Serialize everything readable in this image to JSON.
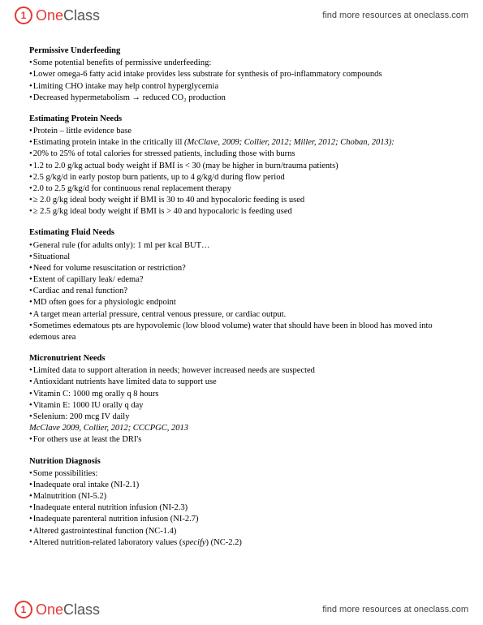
{
  "brand": {
    "one": "One",
    "class": "Class",
    "tagline": "find more resources at oneclass.com"
  },
  "sections": [
    {
      "title": "Permissive Underfeeding",
      "lines": [
        {
          "b": true,
          "t": "Some potential benefits of permissive underfeeding:"
        },
        {
          "b": true,
          "t": "Lower omega-6 fatty acid intake provides less substrate for synthesis of pro-inflammatory compounds"
        },
        {
          "b": true,
          "t": "Limiting CHO intake may help control hyperglycemia"
        },
        {
          "b": true,
          "t": "Decreased hypermetabolism → reduced CO₂ production"
        }
      ]
    },
    {
      "title": "Estimating Protein Needs",
      "lines": [
        {
          "b": true,
          "t": "Protein – little evidence base"
        },
        {
          "b": true,
          "t": "Estimating protein intake in the critically ill ",
          "i": "(McClave, 2009; Collier, 2012; Miller, 2012; Choban, 2013):"
        },
        {
          "b": true,
          "t": "20% to 25% of total calories for stressed patients, including those with burns"
        },
        {
          "b": true,
          "t": "1.2 to 2.0 g/kg actual body weight if BMI is < 30 (may be higher in burn/trauma patients)"
        },
        {
          "b": true,
          "t": "2.5 g/kg/d in early postop burn patients, up to 4 g/kg/d during flow period"
        },
        {
          "b": true,
          "t": "2.0 to 2.5 g/kg/d for continuous renal replacement therapy"
        },
        {
          "b": true,
          "t": "≥ 2.0 g/kg ideal body weight if BMI is 30 to 40 and hypocaloric feeding is used"
        },
        {
          "b": true,
          "t": "≥ 2.5 g/kg ideal body weight if BMI is > 40 and hypocaloric is feeding used"
        }
      ]
    },
    {
      "title": "Estimating Fluid Needs",
      "lines": [
        {
          "b": true,
          "t": "General rule (for adults only):  1 ml per kcal BUT…"
        },
        {
          "b": true,
          "t": "Situational"
        },
        {
          "b": true,
          "t": "Need for volume resuscitation or restriction?"
        },
        {
          "b": true,
          "t": "Extent of capillary leak/ edema?"
        },
        {
          "b": true,
          "t": "Cardiac and renal function?"
        },
        {
          "b": true,
          "t": "MD often goes for a physiologic endpoint"
        },
        {
          "b": true,
          "t": "A target mean arterial pressure, central venous pressure, or cardiac output."
        },
        {
          "b": true,
          "t": "Sometimes edematous pts are hypovolemic (low blood volume) water that should have been in blood has moved into edemous area"
        }
      ]
    },
    {
      "title": "Micronutrient Needs",
      "lines": [
        {
          "b": true,
          "t": "Limited data to support alteration in needs; however increased needs are suspected"
        },
        {
          "b": true,
          "t": "Antioxidant nutrients have limited data to support use"
        },
        {
          "b": true,
          "t": "Vitamin C: 1000 mg orally q 8 hours"
        },
        {
          "b": true,
          "t": "Vitamin E: 1000 IU orally q day"
        },
        {
          "b": true,
          "t": "Selenium: 200 mcg IV daily"
        },
        {
          "b": false,
          "i": "McClave 2009, Collier, 2012; CCCPGC, 2013"
        },
        {
          "b": false,
          "t": " "
        },
        {
          "b": true,
          "t": "For others use at least the DRI's"
        }
      ]
    },
    {
      "title": "Nutrition Diagnosis",
      "lines": [
        {
          "b": true,
          "t": "Some possibilities:"
        },
        {
          "b": true,
          "t": "Inadequate oral intake (NI-2.1)"
        },
        {
          "b": true,
          "t": "Malnutrition (NI-5.2)"
        },
        {
          "b": true,
          "t": "Inadequate enteral nutrition infusion (NI-2.3)"
        },
        {
          "b": true,
          "t": "Inadequate parenteral nutrition infusion (NI-2.7)"
        },
        {
          "b": true,
          "t": "Altered gastrointestinal function (NC-1.4)"
        },
        {
          "b": true,
          "t": "Altered nutrition-related laboratory values (",
          "i": "specify",
          "t2": ") (NC-2.2)"
        }
      ]
    }
  ]
}
